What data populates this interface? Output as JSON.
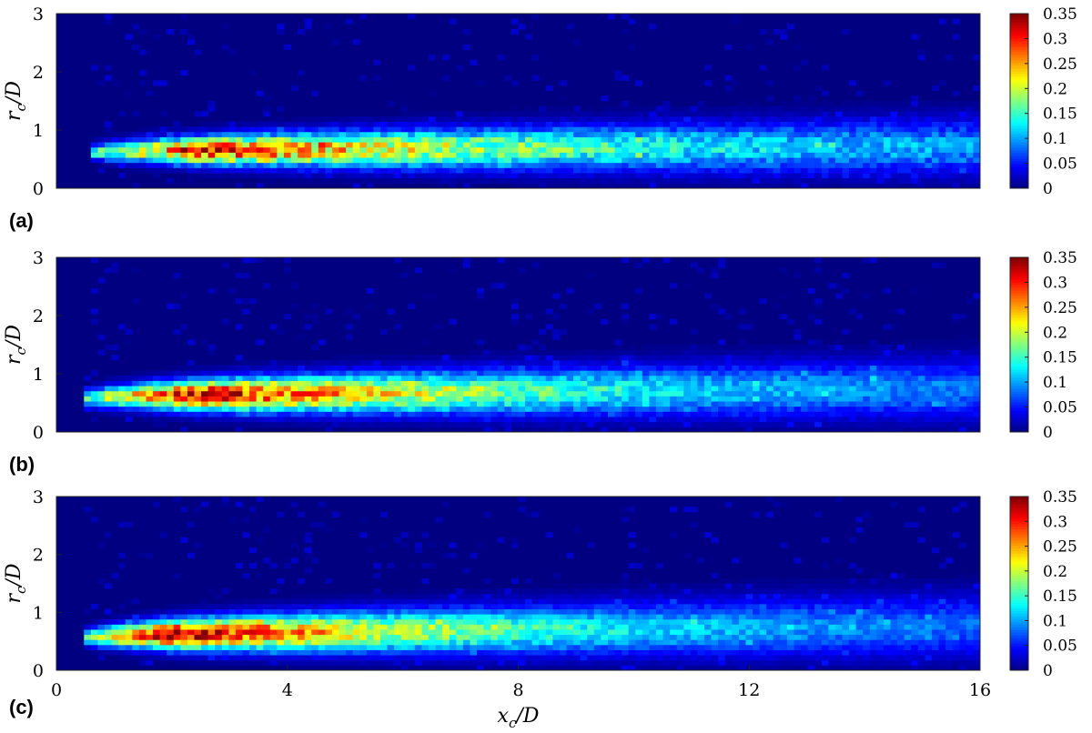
{
  "chart_data": [
    {
      "type": "heatmap",
      "panel_label": "(a)",
      "ylabel": "r_c/D",
      "x_range": [
        0,
        16
      ],
      "y_range": [
        0,
        3
      ],
      "y_ticks": [
        "0",
        "1",
        "2",
        "3"
      ],
      "colorbar": {
        "range": [
          0,
          0.35
        ],
        "ticks": [
          "0",
          "0.05",
          "0.1",
          "0.15",
          "0.2",
          "0.25",
          "0.3",
          "0.35"
        ],
        "colormap": "jet"
      },
      "distribution": {
        "x_start": 0.6,
        "peak_x": 2.6,
        "peak_value": 0.3,
        "core_r_start": 0.62,
        "core_r_end": 0.72,
        "width_start": 0.07,
        "width_end": 0.32,
        "decay_length": 7.0,
        "far_floor": 0.06,
        "noise": 0.55
      }
    },
    {
      "type": "heatmap",
      "panel_label": "(b)",
      "ylabel": "r_c/D",
      "x_range": [
        0,
        16
      ],
      "y_range": [
        0,
        3
      ],
      "y_ticks": [
        "0",
        "1",
        "2",
        "3"
      ],
      "colorbar": {
        "range": [
          0,
          0.35
        ],
        "ticks": [
          "0",
          "0.05",
          "0.1",
          "0.15",
          "0.2",
          "0.25",
          "0.3",
          "0.35"
        ],
        "colormap": "jet"
      },
      "distribution": {
        "x_start": 0.5,
        "peak_x": 2.5,
        "peak_value": 0.33,
        "core_r_start": 0.58,
        "core_r_end": 0.74,
        "width_start": 0.08,
        "width_end": 0.34,
        "decay_length": 6.0,
        "far_floor": 0.055,
        "noise": 0.45
      }
    },
    {
      "type": "heatmap",
      "panel_label": "(c)",
      "xlabel": "x_c/D",
      "ylabel": "r_c/D",
      "x_range": [
        0,
        16
      ],
      "y_range": [
        0,
        3
      ],
      "x_ticks": [
        "0",
        "4",
        "8",
        "12",
        "16"
      ],
      "y_ticks": [
        "0",
        "1",
        "2",
        "3"
      ],
      "colorbar": {
        "range": [
          0,
          0.35
        ],
        "ticks": [
          "0",
          "0.05",
          "0.1",
          "0.15",
          "0.2",
          "0.25",
          "0.3",
          "0.35"
        ],
        "colormap": "jet"
      },
      "distribution": {
        "x_start": 0.5,
        "peak_x": 2.0,
        "peak_value": 0.34,
        "core_r_start": 0.56,
        "core_r_end": 0.76,
        "width_start": 0.08,
        "width_end": 0.36,
        "decay_length": 6.0,
        "far_floor": 0.05,
        "noise": 0.4
      }
    }
  ]
}
